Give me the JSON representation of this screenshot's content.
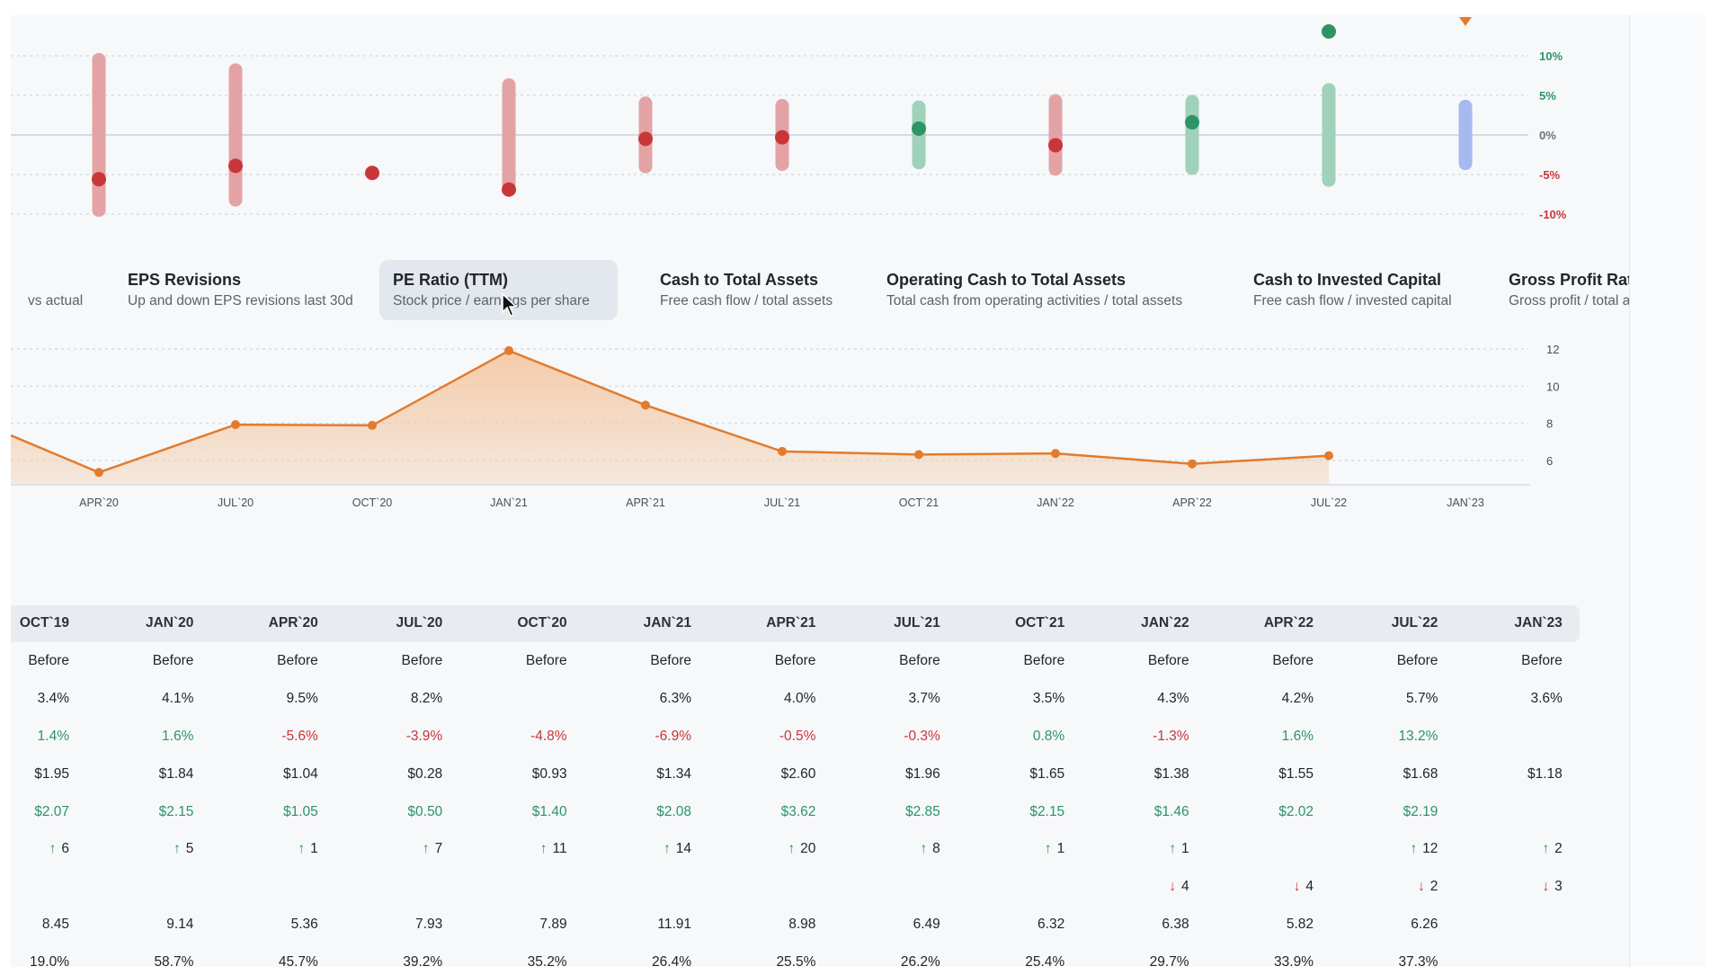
{
  "colors": {
    "green": "#2e9466",
    "red": "#c9363a",
    "green_bar": "#9fd1bb",
    "red_bar": "#e3a3a5",
    "blue_bar": "#a8b9ef",
    "orange": "#e27b2e",
    "fill": "#f3c9a6"
  },
  "surprise_chart": {
    "type": "range-dot",
    "y_ticks": [
      {
        "label": "10%",
        "value": 10,
        "color": "green"
      },
      {
        "label": "5%",
        "value": 5,
        "color": "green"
      },
      {
        "label": "0%",
        "value": 0,
        "color": "neutral"
      },
      {
        "label": "-5%",
        "value": -5,
        "color": "red"
      },
      {
        "label": "-10%",
        "value": -10,
        "color": "red"
      }
    ],
    "points": [
      {
        "range": 9.5,
        "dot": -5.6,
        "color": "red"
      },
      {
        "range": 8.2,
        "dot": -3.9,
        "color": "red"
      },
      {
        "range": null,
        "dot": -4.8,
        "color": "red"
      },
      {
        "range": 6.3,
        "dot": -6.9,
        "color": "red"
      },
      {
        "range": 4.0,
        "dot": -0.5,
        "color": "red"
      },
      {
        "range": 3.7,
        "dot": -0.3,
        "color": "red"
      },
      {
        "range": 3.5,
        "dot": 0.8,
        "color": "green"
      },
      {
        "range": 4.3,
        "dot": -1.3,
        "color": "red"
      },
      {
        "range": 4.2,
        "dot": 1.6,
        "color": "green"
      },
      {
        "range": 5.7,
        "dot": 13.2,
        "color": "green"
      },
      {
        "range": 3.6,
        "dot": null,
        "color": "blue",
        "marker": "upcoming"
      }
    ]
  },
  "tabs": [
    {
      "title": "",
      "subtitle": "vs actual"
    },
    {
      "title": "EPS Revisions",
      "subtitle": "Up and down EPS revisions last 30d"
    },
    {
      "title": "PE Ratio (TTM)",
      "subtitle": "Stock price / earnings per share",
      "active": true
    },
    {
      "title": "Cash to Total Assets",
      "subtitle": "Free cash flow / total assets"
    },
    {
      "title": "Operating Cash to Total Assets",
      "subtitle": "Total cash from operating activities / total assets"
    },
    {
      "title": "Cash to Invested Capital",
      "subtitle": "Free cash flow / invested capital"
    },
    {
      "title": "Gross Profit Ratio",
      "subtitle": "Gross profit / total assets"
    }
  ],
  "chart_data": {
    "type": "area",
    "title": "PE Ratio (TTM)",
    "x": [
      "APR`20",
      "JUL`20",
      "OCT`20",
      "JAN`21",
      "APR`21",
      "JUL`21",
      "OCT`21",
      "JAN`22",
      "APR`22",
      "JUL`22",
      "JAN`23"
    ],
    "values": [
      5.36,
      7.93,
      7.89,
      11.91,
      8.98,
      6.49,
      6.32,
      6.38,
      5.82,
      6.26,
      null
    ],
    "previous_value": 8.45,
    "y_ticks": [
      "12",
      "10",
      "8",
      "6"
    ],
    "ylim": [
      4.6,
      12.5
    ],
    "grid": true
  },
  "table": {
    "headers": [
      "OCT`19",
      "JAN`20",
      "APR`20",
      "JUL`20",
      "OCT`20",
      "JAN`21",
      "APR`21",
      "JUL`21",
      "OCT`21",
      "JAN`22",
      "APR`22",
      "JUL`22",
      "JAN`23"
    ],
    "rows": [
      {
        "style": "plain",
        "values": [
          "Before",
          "Before",
          "Before",
          "Before",
          "Before",
          "Before",
          "Before",
          "Before",
          "Before",
          "Before",
          "Before",
          "Before",
          "Before"
        ]
      },
      {
        "style": "plain",
        "values": [
          "3.4%",
          "4.1%",
          "9.5%",
          "8.2%",
          "",
          "6.3%",
          "4.0%",
          "3.7%",
          "3.5%",
          "4.3%",
          "4.2%",
          "5.7%",
          "3.6%"
        ]
      },
      {
        "style": "signed",
        "values": [
          "1.4%",
          "1.6%",
          "-5.6%",
          "-3.9%",
          "-4.8%",
          "-6.9%",
          "-0.5%",
          "-0.3%",
          "0.8%",
          "-1.3%",
          "1.6%",
          "13.2%",
          ""
        ]
      },
      {
        "style": "plain",
        "values": [
          "$1.95",
          "$1.84",
          "$1.04",
          "$0.28",
          "$0.93",
          "$1.34",
          "$2.60",
          "$1.96",
          "$1.65",
          "$1.38",
          "$1.55",
          "$1.68",
          "$1.18"
        ]
      },
      {
        "style": "green",
        "values": [
          "$2.07",
          "$2.15",
          "$1.05",
          "$0.50",
          "$1.40",
          "$2.08",
          "$3.62",
          "$2.85",
          "$2.15",
          "$1.46",
          "$2.02",
          "$2.19",
          ""
        ]
      },
      {
        "style": "up",
        "values": [
          "6",
          "5",
          "1",
          "7",
          "11",
          "14",
          "20",
          "8",
          "1",
          "1",
          "",
          "12",
          "2"
        ]
      },
      {
        "style": "down",
        "values": [
          "",
          "",
          "",
          "",
          "",
          "",
          "",
          "",
          "",
          "4",
          "4",
          "2",
          "3"
        ]
      },
      {
        "style": "plain",
        "values": [
          "8.45",
          "9.14",
          "5.36",
          "7.93",
          "7.89",
          "11.91",
          "8.98",
          "6.49",
          "6.32",
          "6.38",
          "5.82",
          "6.26",
          ""
        ]
      },
      {
        "style": "plain",
        "values": [
          "19.0%",
          "58.7%",
          "45.7%",
          "39.2%",
          "35.2%",
          "26.4%",
          "25.5%",
          "26.2%",
          "25.4%",
          "29.7%",
          "33.9%",
          "37.3%",
          ""
        ]
      }
    ],
    "arrows": {
      "up": "↑",
      "down": "↓"
    }
  }
}
